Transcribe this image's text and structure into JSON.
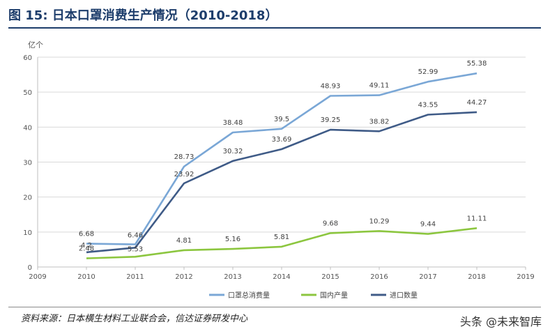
{
  "header": {
    "title": "图 15:  日本口罩消费生产情况（2010-2018）"
  },
  "footer": {
    "source": "资料来源：日本横生材料工业联合会，信达证券研发中心",
    "watermark": "头条 @未来智库"
  },
  "chart_data": {
    "type": "line",
    "title": "",
    "xlabel": "",
    "ylabel": "亿个",
    "xlim": [
      2009,
      2019
    ],
    "ylim": [
      0,
      60
    ],
    "x_ticks": [
      2009,
      2010,
      2011,
      2012,
      2013,
      2014,
      2015,
      2016,
      2017,
      2018,
      2019
    ],
    "y_ticks": [
      0,
      10,
      20,
      30,
      40,
      50,
      60
    ],
    "grid": "horizontal",
    "legend_position": "bottom",
    "x": [
      2010,
      2011,
      2012,
      2013,
      2014,
      2015,
      2016,
      2017,
      2018
    ],
    "series": [
      {
        "name": "口罩总消费量",
        "color": "#7aa7d6",
        "values": [
          6.68,
          6.46,
          28.73,
          38.48,
          39.5,
          48.93,
          49.11,
          52.99,
          55.38
        ],
        "labels": [
          "6.68",
          "6.46",
          "28.73",
          "38.48",
          "39.5",
          "48.93",
          "49.11",
          "52.99",
          "55.38"
        ]
      },
      {
        "name": "国内产量",
        "color": "#8cc63f",
        "values": [
          2.48,
          2.93,
          4.81,
          5.16,
          5.81,
          9.68,
          10.29,
          9.44,
          11.11
        ],
        "labels": [
          "2.48",
          "",
          "4.81",
          "5.16",
          "5.81",
          "9.68",
          "10.29",
          "9.44",
          "11.11"
        ]
      },
      {
        "name": "进口数量",
        "color": "#3f5b87",
        "values": [
          4.2,
          5.53,
          23.92,
          30.32,
          33.69,
          39.25,
          38.82,
          43.55,
          44.27
        ],
        "labels": [
          "4.2",
          "5.53",
          "23.92",
          "30.32",
          "33.69",
          "39.25",
          "38.82",
          "43.55",
          "44.27"
        ]
      }
    ]
  }
}
